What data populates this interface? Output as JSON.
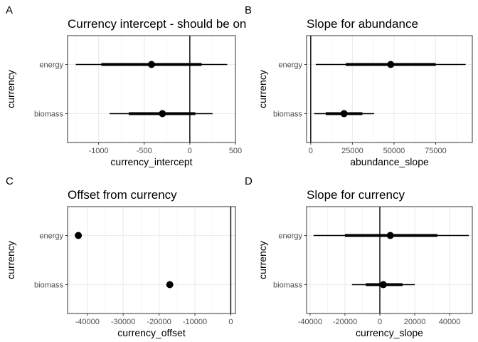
{
  "chart_data": [
    {
      "type": "interval",
      "tag": "A",
      "title": "Currency intercept - should be on",
      "xlabel": "currency_intercept",
      "ylabel": "currency",
      "categories": [
        "energy",
        "biomass"
      ],
      "xlim": [
        -1340,
        500
      ],
      "xticks": [
        -1000,
        -500,
        0,
        500
      ],
      "xtick_labels": [
        "-1000",
        "-500",
        "0",
        "500"
      ],
      "ref_line": 0,
      "points": [
        {
          "category": "energy",
          "estimate": -420,
          "inner": [
            -970,
            130
          ],
          "outer": [
            -1250,
            410
          ]
        },
        {
          "category": "biomass",
          "estimate": -300,
          "inner": [
            -670,
            60
          ],
          "outer": [
            -880,
            250
          ]
        }
      ]
    },
    {
      "type": "interval",
      "tag": "B",
      "title": "Slope for abundance",
      "xlabel": "abundance_slope",
      "ylabel": "currency",
      "categories": [
        "energy",
        "biomass"
      ],
      "xlim": [
        -2500,
        97000
      ],
      "xticks": [
        0,
        25000,
        50000,
        75000
      ],
      "xtick_labels": [
        "0",
        "25000",
        "50000",
        "75000"
      ],
      "ref_line": 0,
      "points": [
        {
          "category": "energy",
          "estimate": 48000,
          "inner": [
            21000,
            75000
          ],
          "outer": [
            3000,
            93000
          ]
        },
        {
          "category": "biomass",
          "estimate": 20000,
          "inner": [
            9000,
            31000
          ],
          "outer": [
            2000,
            38000
          ]
        }
      ]
    },
    {
      "type": "interval",
      "tag": "C",
      "title": "Offset from currency",
      "xlabel": "currency_offset",
      "ylabel": "currency",
      "categories": [
        "energy",
        "biomass"
      ],
      "xlim": [
        -45500,
        1300
      ],
      "xticks": [
        -40000,
        -30000,
        -20000,
        -10000,
        0
      ],
      "xtick_labels": [
        "-40000",
        "-30000",
        "-20000",
        "-10000",
        "0"
      ],
      "ref_line": 0,
      "points": [
        {
          "category": "energy",
          "estimate": -42500,
          "inner": [
            -42900,
            -42100
          ],
          "outer": [
            -43100,
            -41900
          ]
        },
        {
          "category": "biomass",
          "estimate": -17000,
          "inner": [
            -17100,
            -16900
          ],
          "outer": [
            -17200,
            -16800
          ]
        }
      ]
    },
    {
      "type": "interval",
      "tag": "D",
      "title": "Slope for currency",
      "xlabel": "currency_slope",
      "ylabel": "currency",
      "categories": [
        "energy",
        "biomass"
      ],
      "xlim": [
        -42000,
        53000
      ],
      "xticks": [
        -40000,
        -20000,
        0,
        20000,
        40000
      ],
      "xtick_labels": [
        "-40000",
        "-20000",
        "0",
        "20000",
        "40000"
      ],
      "ref_line": 0,
      "points": [
        {
          "category": "energy",
          "estimate": 6000,
          "inner": [
            -20000,
            33000
          ],
          "outer": [
            -38000,
            51000
          ]
        },
        {
          "category": "biomass",
          "estimate": 2000,
          "inner": [
            -8000,
            13000
          ],
          "outer": [
            -16000,
            20000
          ]
        }
      ]
    }
  ]
}
